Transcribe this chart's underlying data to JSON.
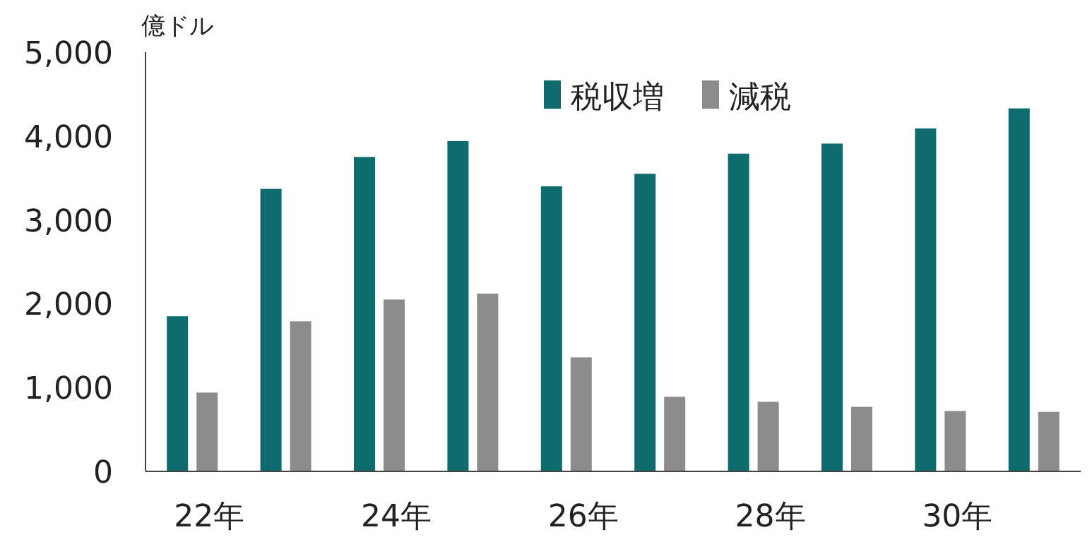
{
  "chart_data": {
    "type": "bar",
    "ylabel": "億ドル",
    "categories": [
      "22年",
      null,
      "24年",
      null,
      "26年",
      null,
      "28年",
      null,
      "30年",
      null
    ],
    "series": [
      {
        "name": "税収増",
        "color": "#0e6b6e",
        "values": [
          1850,
          3370,
          3750,
          3940,
          3400,
          3550,
          3790,
          3910,
          4090,
          4330
        ]
      },
      {
        "name": "減税",
        "color": "#8c8c8c",
        "values": [
          940,
          1790,
          2050,
          2120,
          1360,
          890,
          830,
          770,
          720,
          710
        ]
      }
    ],
    "ylim": [
      0,
      5000
    ],
    "yticks": [
      0,
      {
        "value": 1000,
        "label": "1,000"
      },
      {
        "value": 2000,
        "label": "2,000"
      },
      {
        "value": 3000,
        "label": "3,000"
      },
      {
        "value": 4000,
        "label": "4,000"
      },
      {
        "value": 5000,
        "label": "5,000"
      }
    ],
    "legend": "top"
  }
}
